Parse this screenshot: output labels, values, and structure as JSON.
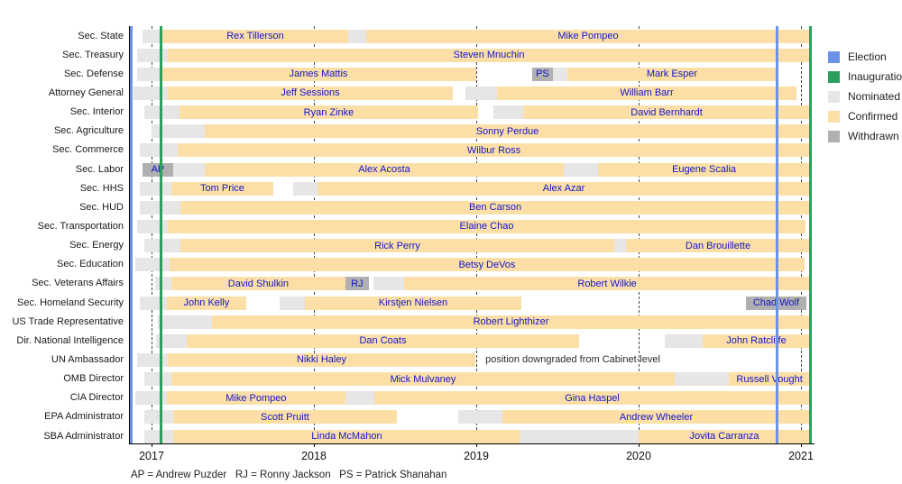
{
  "footnote": "AP = Andrew Puzder   RJ = Ronny Jackson   PS = Patrick Shanahan",
  "colors": {
    "election": "#6c92e8",
    "inauguration": "#2ba05c",
    "nominated": "#e6e6e6",
    "confirmed": "#fbdfa7",
    "withdrawn": "#b0b0b0",
    "name_text": "#1414cd",
    "note_text": "#2b2b2b"
  },
  "legend": [
    {
      "label": "Election",
      "status": "election"
    },
    {
      "label": "Inauguration",
      "status": "inauguration"
    },
    {
      "label": "Nominated",
      "status": "nominated"
    },
    {
      "label": "Confirmed",
      "status": "confirmed"
    },
    {
      "label": "Withdrawn",
      "status": "withdrawn"
    }
  ],
  "chart_data": {
    "type": "gantt-timeline",
    "title": "",
    "x_axis": {
      "ticks": [
        "2017",
        "2018",
        "2019",
        "2020",
        "2021"
      ],
      "tick_years": [
        2017,
        2018,
        2019,
        2020,
        2021
      ],
      "range": [
        2016.861,
        2021.08
      ],
      "grid": "dashed"
    },
    "legend_position": "top-right",
    "markers": [
      {
        "type": "election",
        "year": 2016.875
      },
      {
        "type": "inauguration",
        "year": 2017.056
      },
      {
        "type": "election",
        "year": 2020.85
      },
      {
        "type": "inauguration",
        "year": 2021.056
      }
    ],
    "rows": [
      {
        "label": "Sec. State",
        "segments": [
          {
            "status": "nominated",
            "start": 2016.944,
            "end": 2017.067
          },
          {
            "status": "confirmed",
            "start": 2017.067,
            "end": 2018.211,
            "name": "Rex Tillerson"
          },
          {
            "status": "nominated",
            "start": 2018.211,
            "end": 2018.322
          },
          {
            "status": "confirmed",
            "start": 2018.322,
            "end": 2021.056,
            "name": "Mike Pompeo"
          }
        ]
      },
      {
        "label": "Sec. Treasury",
        "segments": [
          {
            "status": "nominated",
            "start": 2016.911,
            "end": 2017.1
          },
          {
            "status": "confirmed",
            "start": 2017.1,
            "end": 2021.056,
            "name": "Steven Mnuchin"
          }
        ]
      },
      {
        "label": "Sec. Defense",
        "segments": [
          {
            "status": "nominated",
            "start": 2016.911,
            "end": 2017.056
          },
          {
            "status": "confirmed",
            "start": 2017.056,
            "end": 2019.0,
            "name": "James Mattis"
          },
          {
            "status": "withdrawn",
            "start": 2019.344,
            "end": 2019.472,
            "name": "PS"
          },
          {
            "status": "nominated",
            "start": 2019.472,
            "end": 2019.561
          },
          {
            "status": "confirmed",
            "start": 2019.561,
            "end": 2020.85,
            "name": "Mark Esper"
          }
        ]
      },
      {
        "label": "Attorney General",
        "segments": [
          {
            "status": "nominated",
            "start": 2016.889,
            "end": 2017.1
          },
          {
            "status": "confirmed",
            "start": 2017.1,
            "end": 2018.856,
            "name": "Jeff Sessions"
          },
          {
            "status": "nominated",
            "start": 2018.933,
            "end": 2019.128
          },
          {
            "status": "confirmed",
            "start": 2019.128,
            "end": 2020.972,
            "name": "William Barr"
          }
        ]
      },
      {
        "label": "Sec. Interior",
        "segments": [
          {
            "status": "nominated",
            "start": 2016.956,
            "end": 2017.172
          },
          {
            "status": "confirmed",
            "start": 2017.172,
            "end": 2019.011,
            "name": "Ryan Zinke"
          },
          {
            "status": "nominated",
            "start": 2019.106,
            "end": 2019.289
          },
          {
            "status": "confirmed",
            "start": 2019.289,
            "end": 2021.056,
            "name": "David Bernhardt"
          }
        ]
      },
      {
        "label": "Sec. Agriculture",
        "segments": [
          {
            "status": "nominated",
            "start": 2017.0,
            "end": 2017.328
          },
          {
            "status": "confirmed",
            "start": 2017.328,
            "end": 2021.056,
            "name": "Sonny Perdue"
          }
        ]
      },
      {
        "label": "Sec. Commerce",
        "segments": [
          {
            "status": "nominated",
            "start": 2016.928,
            "end": 2017.161
          },
          {
            "status": "confirmed",
            "start": 2017.161,
            "end": 2021.056,
            "name": "Wilbur Ross"
          }
        ]
      },
      {
        "label": "Sec. Labor",
        "segments": [
          {
            "status": "withdrawn",
            "start": 2016.944,
            "end": 2017.133,
            "name": "AP"
          },
          {
            "status": "nominated",
            "start": 2017.133,
            "end": 2017.328
          },
          {
            "status": "confirmed",
            "start": 2017.328,
            "end": 2019.539,
            "name": "Alex Acosta"
          },
          {
            "status": "nominated",
            "start": 2019.539,
            "end": 2019.75
          },
          {
            "status": "confirmed",
            "start": 2019.75,
            "end": 2021.056,
            "name": "Eugene Scalia"
          }
        ]
      },
      {
        "label": "Sec. HHS",
        "segments": [
          {
            "status": "nominated",
            "start": 2016.928,
            "end": 2017.122
          },
          {
            "status": "confirmed",
            "start": 2017.122,
            "end": 2017.75,
            "name": "Tom Price"
          },
          {
            "status": "nominated",
            "start": 2017.872,
            "end": 2018.022
          },
          {
            "status": "confirmed",
            "start": 2018.022,
            "end": 2021.056,
            "name": "Alex Azar"
          }
        ]
      },
      {
        "label": "Sec. HUD",
        "segments": [
          {
            "status": "nominated",
            "start": 2016.928,
            "end": 2017.178
          },
          {
            "status": "confirmed",
            "start": 2017.178,
            "end": 2021.056,
            "name": "Ben Carson"
          }
        ]
      },
      {
        "label": "Sec. Transportation",
        "segments": [
          {
            "status": "nominated",
            "start": 2016.911,
            "end": 2017.1
          },
          {
            "status": "confirmed",
            "start": 2017.1,
            "end": 2021.028,
            "name": "Elaine Chao"
          }
        ]
      },
      {
        "label": "Sec. Energy",
        "segments": [
          {
            "status": "nominated",
            "start": 2016.956,
            "end": 2017.178
          },
          {
            "status": "confirmed",
            "start": 2017.178,
            "end": 2019.85,
            "name": "Rick Perry"
          },
          {
            "status": "nominated",
            "start": 2019.85,
            "end": 2019.922
          },
          {
            "status": "confirmed",
            "start": 2019.922,
            "end": 2021.056,
            "name": "Dan Brouillette"
          }
        ]
      },
      {
        "label": "Sec. Education",
        "segments": [
          {
            "status": "nominated",
            "start": 2016.9,
            "end": 2017.111
          },
          {
            "status": "confirmed",
            "start": 2017.111,
            "end": 2021.022,
            "name": "Betsy DeVos"
          }
        ]
      },
      {
        "label": "Sec. Veterans Affairs",
        "segments": [
          {
            "status": "nominated",
            "start": 2017.022,
            "end": 2017.122
          },
          {
            "status": "confirmed",
            "start": 2017.122,
            "end": 2018.194,
            "name": "David Shulkin"
          },
          {
            "status": "withdrawn",
            "start": 2018.194,
            "end": 2018.339,
            "name": "RJ"
          },
          {
            "status": "nominated",
            "start": 2018.367,
            "end": 2018.556
          },
          {
            "status": "confirmed",
            "start": 2018.556,
            "end": 2021.056,
            "name": "Robert Wilkie"
          }
        ]
      },
      {
        "label": "Sec. Homeland Security",
        "segments": [
          {
            "status": "nominated",
            "start": 2016.928,
            "end": 2017.094
          },
          {
            "status": "confirmed",
            "start": 2017.094,
            "end": 2017.583,
            "name": "John Kelly"
          },
          {
            "status": "nominated",
            "start": 2017.789,
            "end": 2017.944
          },
          {
            "status": "confirmed",
            "start": 2017.944,
            "end": 2019.278,
            "name": "Kirstjen Nielsen"
          },
          {
            "status": "withdrawn",
            "start": 2020.661,
            "end": 2021.033,
            "name": "Chad Wolf"
          }
        ]
      },
      {
        "label": "US Trade Representative",
        "segments": [
          {
            "status": "nominated",
            "start": 2017.039,
            "end": 2017.372
          },
          {
            "status": "confirmed",
            "start": 2017.372,
            "end": 2021.056,
            "name": "Robert Lighthizer"
          }
        ]
      },
      {
        "label": "Dir. National Intelligence",
        "segments": [
          {
            "status": "nominated",
            "start": 2017.028,
            "end": 2017.217
          },
          {
            "status": "confirmed",
            "start": 2017.217,
            "end": 2019.633,
            "name": "Dan Coats"
          },
          {
            "status": "nominated",
            "start": 2020.161,
            "end": 2020.394
          },
          {
            "status": "confirmed",
            "start": 2020.394,
            "end": 2021.056,
            "name": "John Ratcliffe"
          }
        ]
      },
      {
        "label": "UN Ambassador",
        "segments": [
          {
            "status": "nominated",
            "start": 2016.911,
            "end": 2017.1
          },
          {
            "status": "confirmed",
            "start": 2017.1,
            "end": 2018.994,
            "name": "Nikki Haley"
          }
        ],
        "note": {
          "text": "position downgraded from Cabinet-level",
          "start": 2019.056
        }
      },
      {
        "label": "OMB Director",
        "segments": [
          {
            "status": "nominated",
            "start": 2016.956,
            "end": 2017.122
          },
          {
            "status": "confirmed",
            "start": 2017.122,
            "end": 2020.222,
            "name": "Mick Mulvaney"
          },
          {
            "status": "nominated",
            "start": 2020.222,
            "end": 2020.556
          },
          {
            "status": "confirmed",
            "start": 2020.556,
            "end": 2021.056,
            "name": "Russell Vought"
          }
        ]
      },
      {
        "label": "CIA Director",
        "segments": [
          {
            "status": "nominated",
            "start": 2016.9,
            "end": 2017.094
          },
          {
            "status": "confirmed",
            "start": 2017.094,
            "end": 2018.194,
            "name": "Mike Pompeo"
          },
          {
            "status": "nominated",
            "start": 2018.194,
            "end": 2018.372
          },
          {
            "status": "confirmed",
            "start": 2018.372,
            "end": 2021.056,
            "name": "Gina Haspel"
          }
        ]
      },
      {
        "label": "EPA Administrator",
        "segments": [
          {
            "status": "nominated",
            "start": 2016.956,
            "end": 2017.133
          },
          {
            "status": "confirmed",
            "start": 2017.133,
            "end": 2018.511,
            "name": "Scott Pruitt"
          },
          {
            "status": "nominated",
            "start": 2018.889,
            "end": 2019.161
          },
          {
            "status": "confirmed",
            "start": 2019.161,
            "end": 2021.056,
            "name": "Andrew Wheeler"
          }
        ]
      },
      {
        "label": "SBA Administrator",
        "segments": [
          {
            "status": "nominated",
            "start": 2016.956,
            "end": 2017.133
          },
          {
            "status": "confirmed",
            "start": 2017.133,
            "end": 2019.272,
            "name": "Linda McMahon"
          },
          {
            "status": "nominated",
            "start": 2019.272,
            "end": 2020.0
          },
          {
            "status": "confirmed",
            "start": 2020.0,
            "end": 2021.056,
            "name": "Jovita Carranza"
          }
        ]
      }
    ]
  }
}
